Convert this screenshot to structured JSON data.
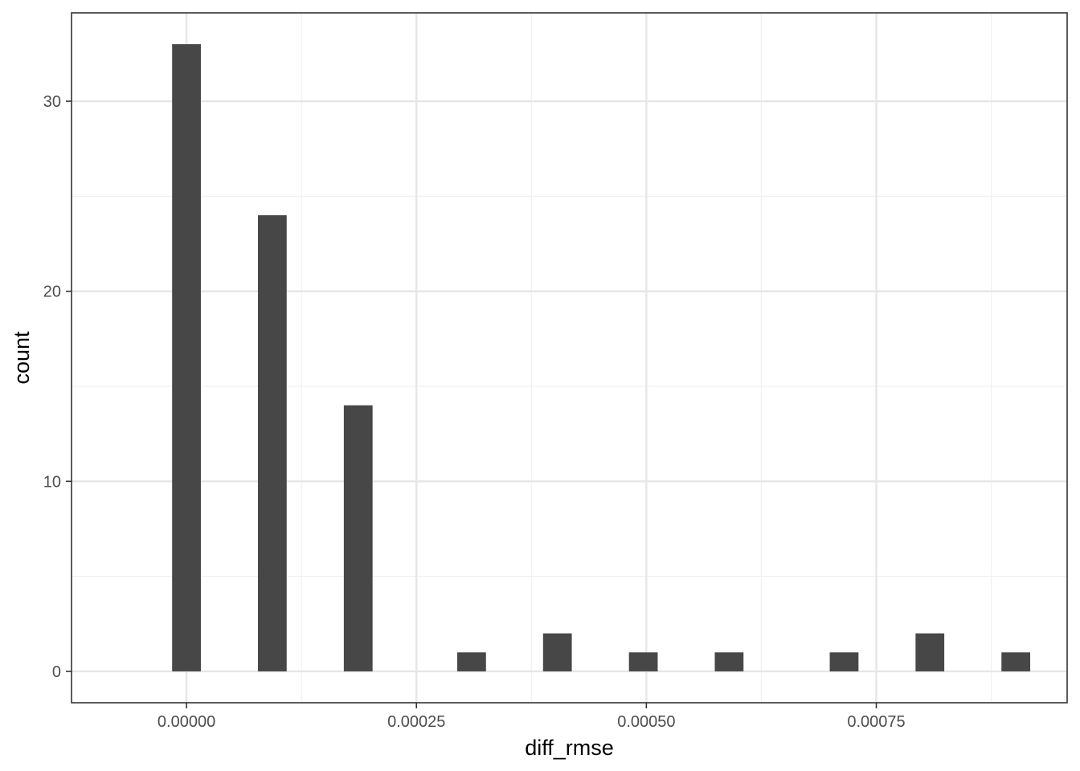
{
  "chart_data": {
    "type": "bar",
    "title": "",
    "xlabel": "diff_rmse",
    "ylabel": "count",
    "xlim": [
      -0.000125,
      0.0009575
    ],
    "ylim": [
      -1.65,
      34.65
    ],
    "x_ticks": [
      0.0,
      0.00025,
      0.0005,
      0.00075
    ],
    "x_tick_labels": [
      "0.00000",
      "0.00025",
      "0.00050",
      "0.00075"
    ],
    "y_ticks": [
      0,
      10,
      20,
      30
    ],
    "y_tick_labels": [
      "0",
      "10",
      "20",
      "30"
    ],
    "x_minor_gridlines": [
      0.000125,
      0.000375,
      0.000625,
      0.000875
    ],
    "y_minor_gridlines": [
      5,
      15,
      25
    ],
    "grid": true,
    "bin_width": 3.125e-05,
    "bars": [
      {
        "x": 0.0,
        "count": 33
      },
      {
        "x": 9.33e-05,
        "count": 24
      },
      {
        "x": 0.0001867,
        "count": 14
      },
      {
        "x": 0.00031,
        "count": 1
      },
      {
        "x": 0.0004033,
        "count": 2
      },
      {
        "x": 0.0004967,
        "count": 1
      },
      {
        "x": 0.00059,
        "count": 1
      },
      {
        "x": 0.000715,
        "count": 1
      },
      {
        "x": 0.0008083,
        "count": 2
      },
      {
        "x": 0.0009017,
        "count": 1
      }
    ],
    "bar_color": "#474747",
    "major_grid_color": "#e6e6e6",
    "minor_grid_color": "#f0f0f0",
    "border_color": "#333333"
  }
}
